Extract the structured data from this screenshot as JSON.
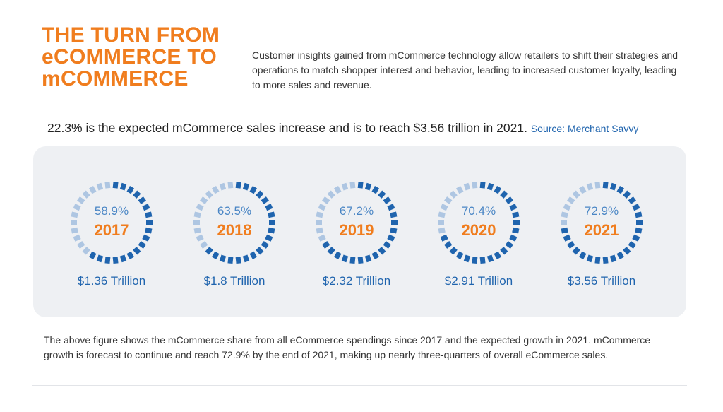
{
  "header": {
    "title_lines": [
      "THE TURN FROM",
      "eCOMMERCE TO",
      "mCOMMERCE"
    ],
    "intro": "Customer insights gained from mCommerce technology allow retailers to shift their strategies and operations to match shopper interest and behavior, leading to increased customer loyalty, leading to more sales and revenue."
  },
  "headline": {
    "text": "22.3% is the expected mCommerce sales increase and is to reach $3.56 trillion in 2021.",
    "source": "Source: Merchant Savvy"
  },
  "footer": {
    "text": "The above figure shows the mCommerce share from all eCommerce spendings since 2017 and the expected growth in 2021. mCommerce growth is forecast to continue and reach 72.9% by the end of 2021, making up nearly three-quarters of overall eCommerce sales."
  },
  "colors": {
    "orange": "#f07d1e",
    "ring_filled": "#1f64ae",
    "ring_empty": "#aec6e2",
    "panel": "#eef0f3"
  },
  "chart_data": {
    "type": "donut-gauge",
    "segments_per_ring": 30,
    "items": [
      {
        "year": "2017",
        "share_label": "58.9%",
        "share": 58.9,
        "amount_label": "$1.36 Trillion",
        "amount": 1.36
      },
      {
        "year": "2018",
        "share_label": "63.5%",
        "share": 63.5,
        "amount_label": "$1.8 Trillion",
        "amount": 1.8
      },
      {
        "year": "2019",
        "share_label": "67.2%",
        "share": 67.2,
        "amount_label": "$2.32 Trillion",
        "amount": 2.32
      },
      {
        "year": "2020",
        "share_label": "70.4%",
        "share": 70.4,
        "amount_label": "$2.91 Trillion",
        "amount": 2.91
      },
      {
        "year": "2021",
        "share_label": "72.9%",
        "share": 72.9,
        "amount_label": "$3.56 Trillion",
        "amount": 3.56
      }
    ]
  }
}
